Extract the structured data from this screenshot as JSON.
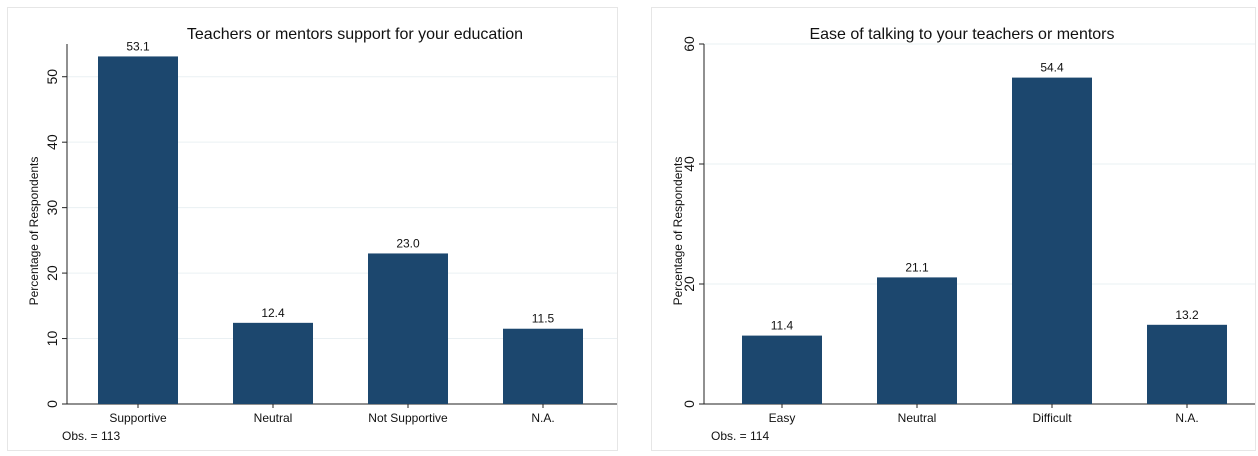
{
  "colors": {
    "bar": "#1c476e",
    "grid": "#eaf0f3",
    "axis": "#222222",
    "panel_border": "#e6e6e6"
  },
  "chart_data": [
    {
      "type": "bar",
      "title": "Teachers or mentors support for your education",
      "ylabel": "Percentage of Respondents",
      "xlabel": "",
      "categories": [
        "Supportive",
        "Neutral",
        "Not Supportive",
        "N.A."
      ],
      "values": [
        53.1,
        12.4,
        23.0,
        11.5
      ],
      "value_labels": [
        "53.1",
        "12.4",
        "23.0",
        "11.5"
      ],
      "ylim": [
        0,
        55
      ],
      "yticks": [
        0,
        10,
        20,
        30,
        40,
        50
      ],
      "grid": true,
      "note": "Obs. = 113"
    },
    {
      "type": "bar",
      "title": "Ease of talking to your teachers or mentors",
      "ylabel": "Percentage of Respondents",
      "xlabel": "",
      "categories": [
        "Easy",
        "Neutral",
        "Difficult",
        "N.A."
      ],
      "values": [
        11.4,
        21.1,
        54.4,
        13.2
      ],
      "value_labels": [
        "11.4",
        "21.1",
        "54.4",
        "13.2"
      ],
      "ylim": [
        0,
        60
      ],
      "yticks": [
        0,
        20,
        40,
        60
      ],
      "grid": true,
      "note": "Obs. = 114"
    }
  ]
}
